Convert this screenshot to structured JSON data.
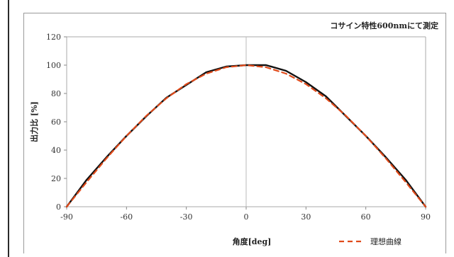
{
  "chart_data": {
    "type": "line",
    "title": "コサイン特性600nmにて測定",
    "xlabel": "角度[deg]",
    "ylabel": "出力比 [%]",
    "xlim": [
      -90,
      90
    ],
    "ylim": [
      0,
      120
    ],
    "xticks": [
      -90,
      -60,
      -30,
      0,
      30,
      60,
      90
    ],
    "yticks": [
      0,
      20,
      40,
      60,
      80,
      100,
      120
    ],
    "grid": "vertical at x=0 only",
    "legend": {
      "placement": "bottom-right",
      "entries": [
        "理想曲線"
      ]
    },
    "series": [
      {
        "style": "solid",
        "color": "#111111",
        "x": [
          -90,
          -80,
          -70,
          -60,
          -50,
          -40,
          -30,
          -20,
          -10,
          0,
          10,
          20,
          30,
          40,
          50,
          60,
          70,
          80,
          90
        ],
        "y": [
          0,
          19,
          35,
          50,
          64,
          77,
          86,
          95,
          99,
          100,
          100,
          96,
          88,
          78,
          64,
          50,
          35,
          19,
          0
        ]
      },
      {
        "name": "理想曲線",
        "style": "dashed",
        "color": "#e04a1a",
        "x": [
          -90,
          -80,
          -70,
          -60,
          -50,
          -40,
          -30,
          -20,
          -10,
          0,
          10,
          20,
          30,
          40,
          50,
          60,
          70,
          80,
          90
        ],
        "y": [
          0,
          17.4,
          34.2,
          50,
          64.3,
          76.6,
          86.6,
          94,
          98.5,
          100,
          98.5,
          94,
          86.6,
          76.6,
          64.3,
          50,
          34.2,
          17.4,
          0
        ]
      }
    ]
  }
}
